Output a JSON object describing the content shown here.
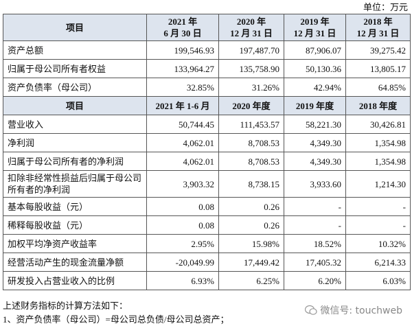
{
  "unit": "单位：万元",
  "table": {
    "header1": [
      "项目",
      "2021 年\n6 月 30 日",
      "2020 年\n12 月 31 日",
      "2019 年\n12 月 31 日",
      "2018 年\n12 月 31 日"
    ],
    "rows1": [
      [
        "资产总额",
        "199,546.93",
        "197,487.70",
        "87,906.07",
        "39,275.42"
      ],
      [
        "归属于母公司所有者权益",
        "133,964.27",
        "135,758.90",
        "50,130.36",
        "13,805.17"
      ],
      [
        "资产负债率（母公司）",
        "32.85%",
        "31.26%",
        "42.94%",
        "64.85%"
      ]
    ],
    "header2": [
      "项目",
      "2021 年 1-6 月",
      "2020 年度",
      "2019 年度",
      "2018 年度"
    ],
    "rows2": [
      [
        "营业收入",
        "50,744.45",
        "111,453.57",
        "58,221.30",
        "30,426.81"
      ],
      [
        "净利润",
        "4,062.01",
        "8,708.53",
        "4,349.30",
        "1,354.98"
      ],
      [
        "归属于母公司所有者的净利润",
        "4,062.01",
        "8,708.53",
        "4,349.30",
        "1,354.98"
      ],
      [
        "扣除非经常性损益后归属于母公司所有者的净利润",
        "3,903.32",
        "8,738.15",
        "3,933.60",
        "1,214.30"
      ],
      [
        "基本每股收益（元）",
        "0.08",
        "0.26",
        "-",
        "-"
      ],
      [
        "稀释每股收益（元）",
        "0.08",
        "0.26",
        "-",
        "-"
      ],
      [
        "加权平均净资产收益率",
        "2.95%",
        "15.98%",
        "18.52%",
        "10.32%"
      ],
      [
        "经营活动产生的现金流量净额",
        "-20,049.99",
        "17,449.42",
        "17,405.32",
        "6,214.33"
      ],
      [
        "研发投入占营业收入的比例",
        "6.93%",
        "6.25%",
        "6.20%",
        "6.03%"
      ]
    ]
  },
  "footnotes": [
    "上述财务指标的计算方法如下：",
    "1、资产负债率（母公司）=母公司总负债/母公司总资产；"
  ],
  "watermark": "微信号: touchweb"
}
